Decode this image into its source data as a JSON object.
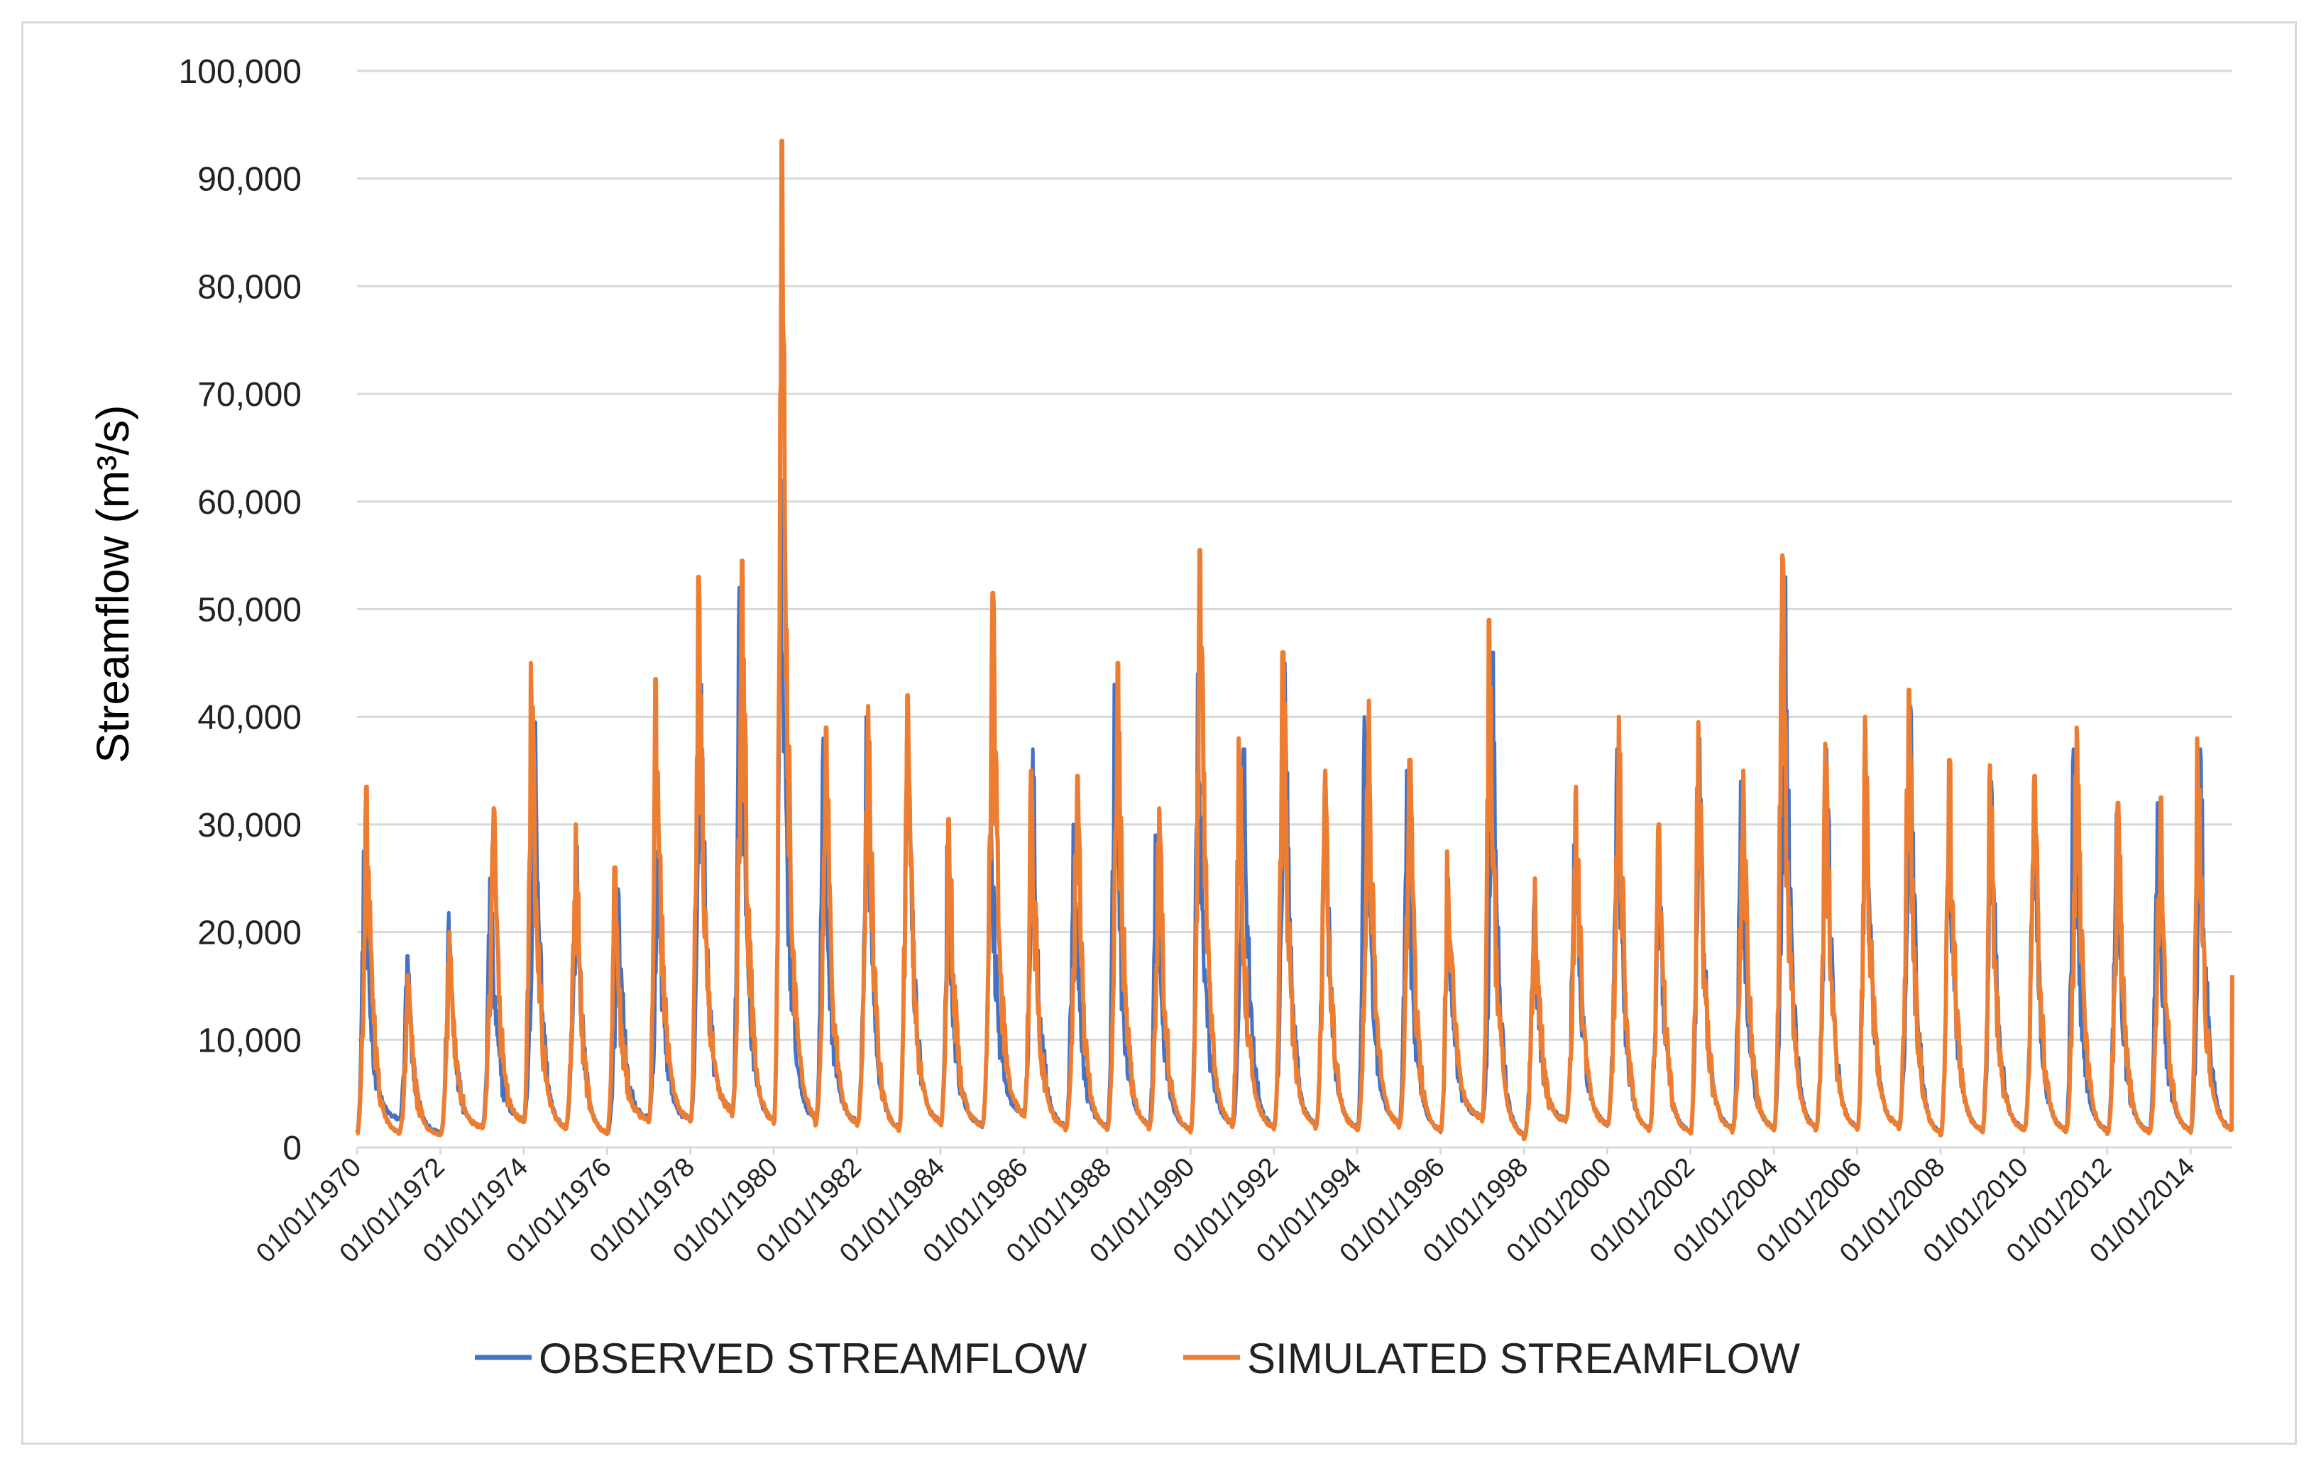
{
  "chart_data": {
    "type": "line",
    "title": "",
    "xlabel": "",
    "ylabel": "Streamflow (m³/s)",
    "ylim": [
      0,
      100000
    ],
    "grid": true,
    "legend_position": "bottom",
    "y_ticks": [
      {
        "value": 0,
        "label": "0"
      },
      {
        "value": 10000,
        "label": "10,000"
      },
      {
        "value": 20000,
        "label": "20,000"
      },
      {
        "value": 30000,
        "label": "30,000"
      },
      {
        "value": 40000,
        "label": "40,000"
      },
      {
        "value": 50000,
        "label": "50,000"
      },
      {
        "value": 60000,
        "label": "60,000"
      },
      {
        "value": 70000,
        "label": "70,000"
      },
      {
        "value": 80000,
        "label": "80,000"
      },
      {
        "value": 90000,
        "label": "90,000"
      },
      {
        "value": 100000,
        "label": "100,000"
      }
    ],
    "x_range": [
      1970.0,
      2015.0
    ],
    "x_ticks": [
      {
        "value": 1970,
        "label": "01/01/1970"
      },
      {
        "value": 1972,
        "label": "01/01/1972"
      },
      {
        "value": 1974,
        "label": "01/01/1974"
      },
      {
        "value": 1976,
        "label": "01/01/1976"
      },
      {
        "value": 1978,
        "label": "01/01/1978"
      },
      {
        "value": 1980,
        "label": "01/01/1980"
      },
      {
        "value": 1982,
        "label": "01/01/1982"
      },
      {
        "value": 1984,
        "label": "01/01/1984"
      },
      {
        "value": 1986,
        "label": "01/01/1986"
      },
      {
        "value": 1988,
        "label": "01/01/1988"
      },
      {
        "value": 1990,
        "label": "01/01/1990"
      },
      {
        "value": 1992,
        "label": "01/01/1992"
      },
      {
        "value": 1994,
        "label": "01/01/1994"
      },
      {
        "value": 1996,
        "label": "01/01/1996"
      },
      {
        "value": 1998,
        "label": "01/01/1998"
      },
      {
        "value": 2000,
        "label": "01/01/2000"
      },
      {
        "value": 2002,
        "label": "01/01/2002"
      },
      {
        "value": 2004,
        "label": "01/01/2004"
      },
      {
        "value": 2006,
        "label": "01/01/2006"
      },
      {
        "value": 2008,
        "label": "01/01/2008"
      },
      {
        "value": 2010,
        "label": "01/01/2010"
      },
      {
        "value": 2012,
        "label": "01/01/2012"
      },
      {
        "value": 2014,
        "label": "01/01/2014"
      }
    ],
    "annual_peak_years": [
      1970,
      1971,
      1972,
      1973,
      1974,
      1975,
      1976,
      1977,
      1978,
      1979,
      1980,
      1981,
      1982,
      1983,
      1984,
      1985,
      1986,
      1987,
      1988,
      1989,
      1990,
      1991,
      1992,
      1993,
      1994,
      1995,
      1996,
      1997,
      1998,
      1999,
      2000,
      2001,
      2002,
      2003,
      2004,
      2005,
      2006,
      2007,
      2008,
      2009,
      2010,
      2011,
      2012,
      2013,
      2014
    ],
    "series": [
      {
        "name": "OBSERVED STREAMFLOW",
        "color": "#4472c4",
        "annual_peaks": [
          27500,
          17800,
          21800,
          25000,
          39500,
          28000,
          24000,
          27500,
          43000,
          52000,
          62000,
          38000,
          40000,
          40000,
          28000,
          32000,
          37000,
          30000,
          43000,
          29000,
          44000,
          37000,
          45000,
          34000,
          40000,
          35000,
          25000,
          46000,
          23000,
          33000,
          37000,
          28000,
          38000,
          34000,
          53000,
          37000,
          39000,
          41000,
          34000,
          34000,
          34000,
          37000,
          31000,
          32000,
          37000
        ],
        "annual_lows": [
          1500,
          2500,
          1300,
          1800,
          2400,
          1700,
          1200,
          2600,
          2400,
          3300,
          2200,
          2300,
          2200,
          1700,
          2200,
          2000,
          3000,
          1800,
          1800,
          1900,
          1600,
          2000,
          1800,
          1900,
          1700,
          2100,
          1500,
          2700,
          900,
          2500,
          2100,
          1600,
          1400,
          1600,
          1700,
          1600,
          1700,
          1900,
          1200,
          1500,
          1600,
          1500,
          1400,
          1400,
          1500
        ]
      },
      {
        "name": "SIMULATED STREAMFLOW",
        "color": "#ed7d31",
        "annual_peaks": [
          33500,
          16000,
          20000,
          31500,
          45000,
          30000,
          26000,
          43500,
          53000,
          54500,
          93500,
          39000,
          41000,
          42000,
          30500,
          51500,
          35000,
          34500,
          45000,
          31500,
          55500,
          38000,
          46000,
          35000,
          41500,
          36000,
          27500,
          49000,
          25000,
          33500,
          40000,
          30000,
          39500,
          35000,
          55000,
          37500,
          40000,
          42500,
          36000,
          35500,
          34500,
          39000,
          32000,
          32500,
          38000
        ],
        "annual_lows": [
          1300,
          1200,
          1100,
          1800,
          2300,
          1600,
          1200,
          2400,
          2300,
          3100,
          2100,
          2200,
          2100,
          1600,
          2100,
          1900,
          2800,
          1700,
          1700,
          1800,
          1500,
          1900,
          1700,
          1800,
          1600,
          2000,
          1400,
          2600,
          800,
          2400,
          2000,
          1500,
          1300,
          1500,
          1600,
          1500,
          1600,
          1800,
          1100,
          1400,
          1500,
          1400,
          1300,
          1300,
          1400
        ],
        "end_value": 16000
      }
    ]
  }
}
